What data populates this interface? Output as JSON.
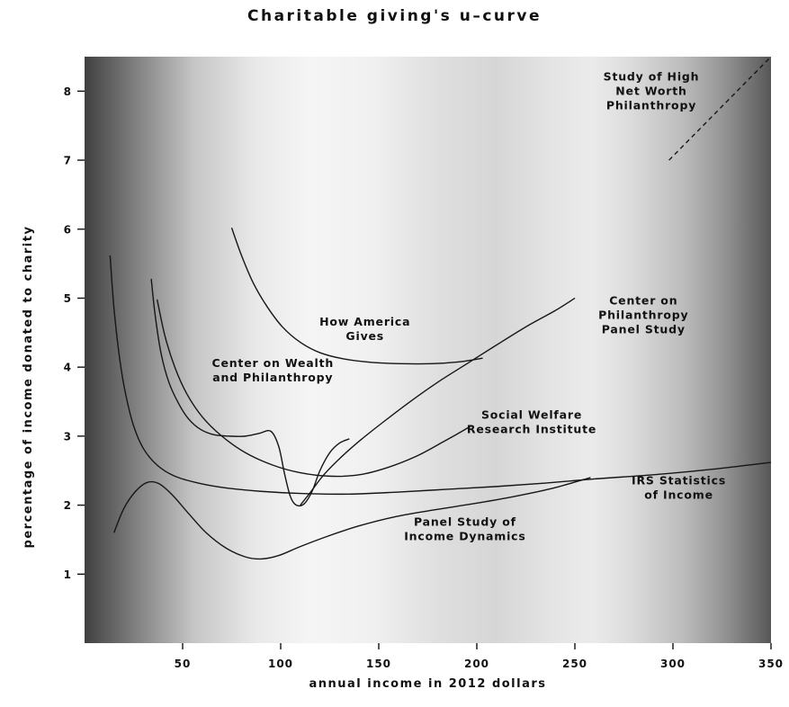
{
  "chart_data": {
    "type": "line",
    "title": "Charitable giving's u–curve",
    "xlabel": "annual income in 2012 dollars",
    "ylabel": "percentage of income donated to charity",
    "xlim": [
      0,
      350
    ],
    "ylim": [
      0,
      8.5
    ],
    "xticks": [
      50,
      100,
      150,
      200,
      250,
      300,
      350
    ],
    "yticks": [
      1,
      2,
      3,
      4,
      5,
      6,
      7,
      8
    ],
    "grid": false,
    "legend_position": "inline-annotations",
    "line_color": "#161616",
    "series": [
      {
        "name": "IRS Statistics of Income",
        "style": "solid",
        "points": [
          [
            13,
            5.62
          ],
          [
            15,
            4.85
          ],
          [
            18,
            4.1
          ],
          [
            21,
            3.6
          ],
          [
            25,
            3.15
          ],
          [
            30,
            2.82
          ],
          [
            37,
            2.58
          ],
          [
            46,
            2.42
          ],
          [
            58,
            2.32
          ],
          [
            72,
            2.25
          ],
          [
            90,
            2.2
          ],
          [
            110,
            2.17
          ],
          [
            135,
            2.16
          ],
          [
            160,
            2.19
          ],
          [
            185,
            2.23
          ],
          [
            210,
            2.27
          ],
          [
            235,
            2.32
          ],
          [
            260,
            2.38
          ],
          [
            290,
            2.44
          ],
          [
            320,
            2.52
          ],
          [
            350,
            2.62
          ]
        ]
      },
      {
        "name": "Center on Wealth and Philanthropy",
        "style": "solid",
        "points": [
          [
            34,
            5.28
          ],
          [
            36,
            4.75
          ],
          [
            39,
            4.2
          ],
          [
            43,
            3.78
          ],
          [
            48,
            3.47
          ],
          [
            53,
            3.25
          ],
          [
            59,
            3.1
          ],
          [
            66,
            3.02
          ],
          [
            74,
            3.0
          ],
          [
            82,
            3.0
          ],
          [
            89,
            3.04
          ],
          [
            95,
            3.07
          ],
          [
            99,
            2.85
          ],
          [
            102,
            2.45
          ],
          [
            105,
            2.12
          ],
          [
            108,
            2.0
          ],
          [
            112,
            2.02
          ],
          [
            116,
            2.2
          ],
          [
            120,
            2.5
          ],
          [
            125,
            2.76
          ],
          [
            130,
            2.9
          ],
          [
            135,
            2.96
          ]
        ]
      },
      {
        "name": "Social Welfare Research Institute",
        "style": "solid",
        "points": [
          [
            37,
            4.98
          ],
          [
            41,
            4.45
          ],
          [
            46,
            4.0
          ],
          [
            52,
            3.62
          ],
          [
            60,
            3.28
          ],
          [
            70,
            3.0
          ],
          [
            82,
            2.76
          ],
          [
            96,
            2.58
          ],
          [
            110,
            2.47
          ],
          [
            125,
            2.42
          ],
          [
            140,
            2.44
          ],
          [
            155,
            2.55
          ],
          [
            170,
            2.72
          ],
          [
            183,
            2.92
          ],
          [
            193,
            3.08
          ],
          [
            197,
            3.15
          ]
        ]
      },
      {
        "name": "How America Gives",
        "style": "solid",
        "points": [
          [
            75,
            6.02
          ],
          [
            80,
            5.62
          ],
          [
            86,
            5.22
          ],
          [
            93,
            4.88
          ],
          [
            101,
            4.58
          ],
          [
            110,
            4.36
          ],
          [
            120,
            4.21
          ],
          [
            132,
            4.12
          ],
          [
            146,
            4.07
          ],
          [
            161,
            4.05
          ],
          [
            177,
            4.05
          ],
          [
            192,
            4.08
          ],
          [
            203,
            4.13
          ]
        ]
      },
      {
        "name": "Center on Philanthropy Panel Study",
        "style": "solid",
        "points": [
          [
            110,
            2.0
          ],
          [
            115,
            2.18
          ],
          [
            122,
            2.44
          ],
          [
            131,
            2.7
          ],
          [
            141,
            2.95
          ],
          [
            153,
            3.22
          ],
          [
            166,
            3.5
          ],
          [
            180,
            3.78
          ],
          [
            195,
            4.05
          ],
          [
            210,
            4.32
          ],
          [
            226,
            4.6
          ],
          [
            240,
            4.82
          ],
          [
            250,
            5.0
          ]
        ]
      },
      {
        "name": "Panel Study of Income Dynamics",
        "style": "solid",
        "points": [
          [
            15,
            1.6
          ],
          [
            20,
            1.95
          ],
          [
            26,
            2.2
          ],
          [
            32,
            2.33
          ],
          [
            38,
            2.31
          ],
          [
            45,
            2.14
          ],
          [
            53,
            1.88
          ],
          [
            62,
            1.6
          ],
          [
            72,
            1.38
          ],
          [
            82,
            1.25
          ],
          [
            90,
            1.22
          ],
          [
            99,
            1.27
          ],
          [
            110,
            1.4
          ],
          [
            124,
            1.55
          ],
          [
            140,
            1.7
          ],
          [
            158,
            1.83
          ],
          [
            178,
            1.93
          ],
          [
            198,
            2.02
          ],
          [
            218,
            2.12
          ],
          [
            238,
            2.24
          ],
          [
            258,
            2.4
          ]
        ]
      },
      {
        "name": "Study of High Net Worth Philanthropy",
        "style": "dashed",
        "points": [
          [
            298,
            7.0
          ],
          [
            350,
            8.5
          ]
        ]
      }
    ],
    "annotations": [
      {
        "lines": [
          "Study of High",
          "Net Worth",
          "Philanthropy"
        ],
        "x": 289,
        "y": 8.0
      },
      {
        "lines": [
          "How America",
          "Gives"
        ],
        "x": 143,
        "y": 4.55
      },
      {
        "lines": [
          "Center on Wealth",
          "and Philanthropy"
        ],
        "x": 96,
        "y": 3.95
      },
      {
        "lines": [
          "Center on",
          "Philanthropy",
          "Panel Study"
        ],
        "x": 285,
        "y": 4.75
      },
      {
        "lines": [
          "Social Welfare",
          "Research Institute"
        ],
        "x": 228,
        "y": 3.2
      },
      {
        "lines": [
          "IRS Statistics",
          "of Income"
        ],
        "x": 303,
        "y": 2.25
      },
      {
        "lines": [
          "Panel Study of",
          "Income Dynamics"
        ],
        "x": 194,
        "y": 1.65
      }
    ]
  }
}
